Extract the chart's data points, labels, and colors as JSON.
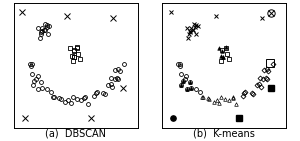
{
  "title_a": "(a)  DBSCAN",
  "title_b": "(b)  K-means",
  "title_fontsize": 7,
  "figsize": [
    3.0,
    1.41
  ],
  "dpi": 100,
  "background_color": "#f0f0f0",
  "panel_bg": "#f0f0f0"
}
